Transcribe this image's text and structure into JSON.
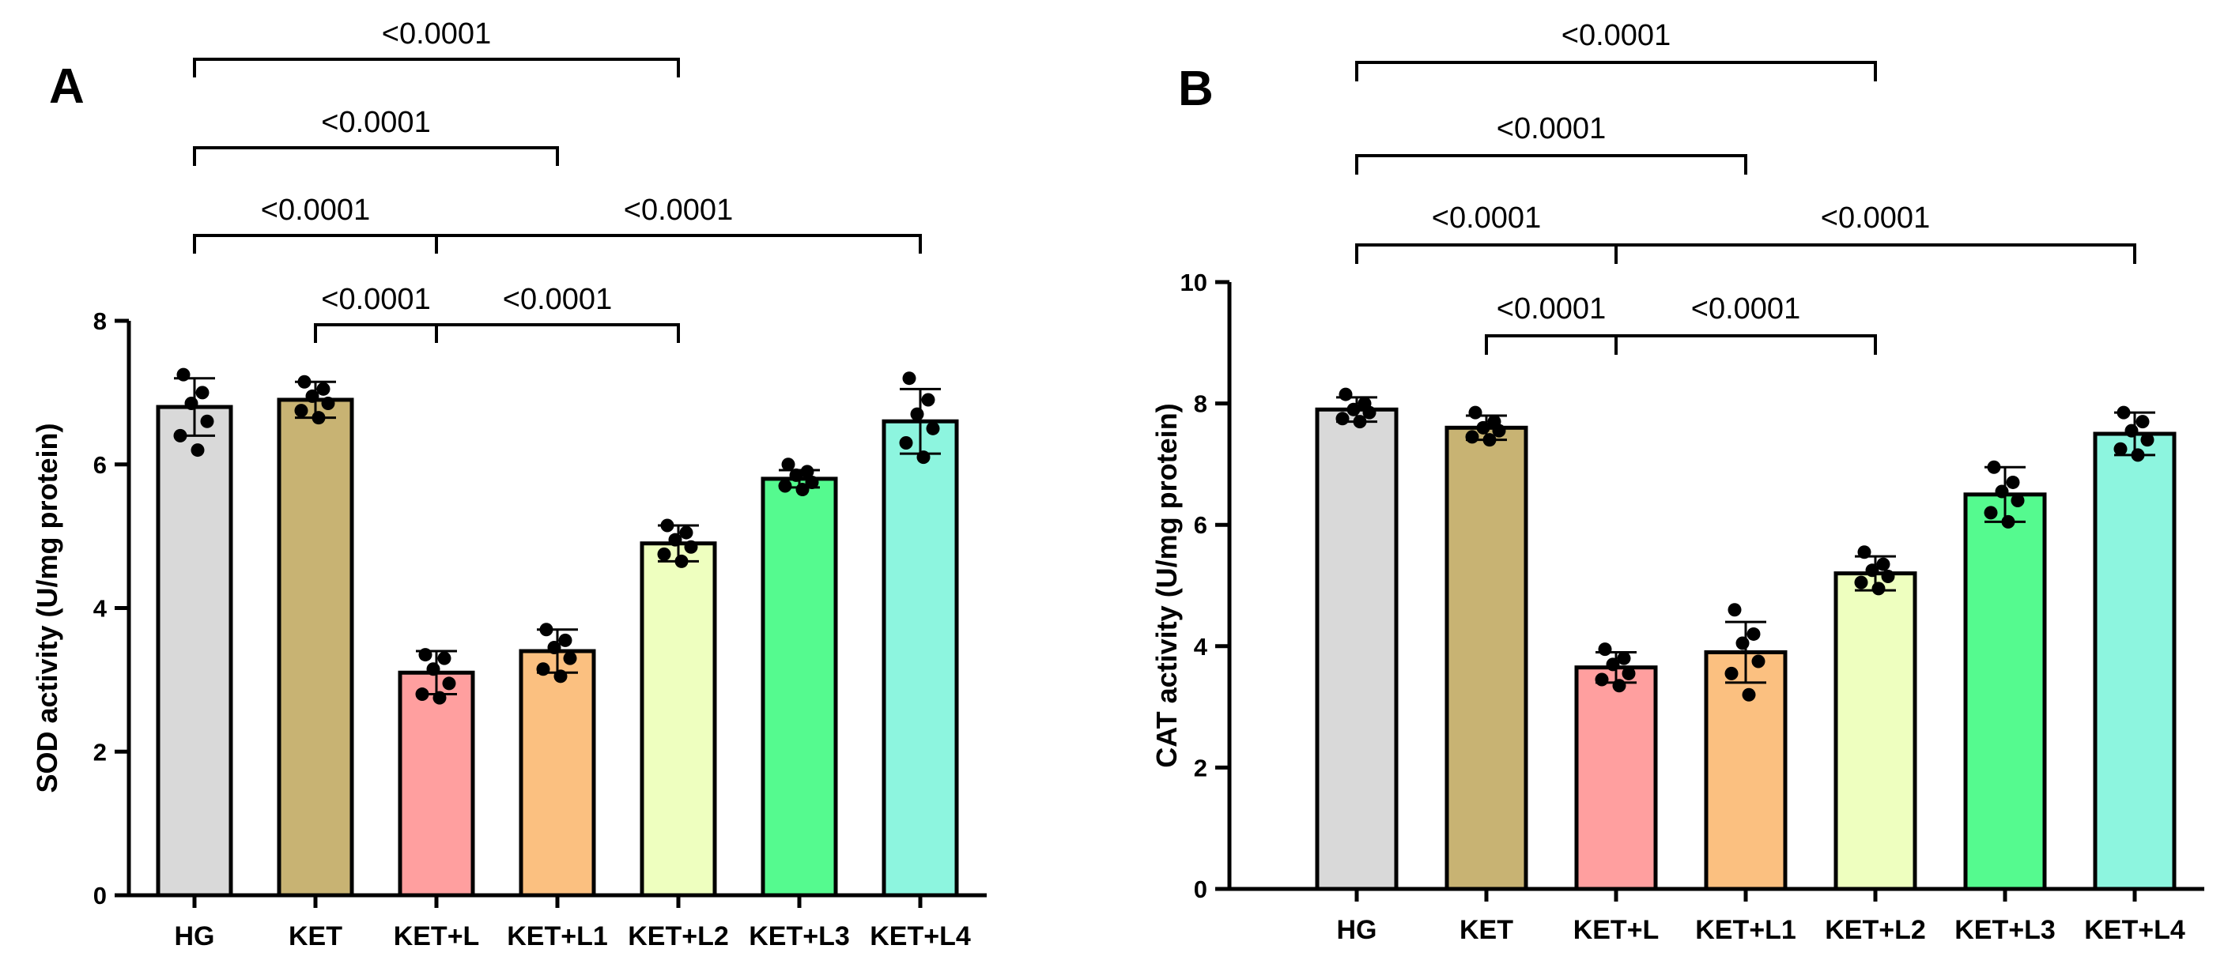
{
  "chart_data": [
    {
      "type": "bar",
      "panel": "A",
      "ylabel": "SOD  activity (U/mg protein)",
      "ylim": [
        0,
        8
      ],
      "yticks": [
        "0",
        "2",
        "4",
        "6",
        "8"
      ],
      "categories": [
        "HG",
        "KET",
        "KET+L",
        "KET+L1",
        "KET+L2",
        "KET+L3",
        "KET+L4"
      ],
      "colors": [
        "#d9d9d9",
        "#c8b373",
        "#ff9f9f",
        "#fbc080",
        "#eeffbf",
        "#55fa8f",
        "#8df5df"
      ],
      "values": [
        6.8,
        6.9,
        3.1,
        3.4,
        4.9,
        5.8,
        6.6
      ],
      "sd": [
        0.4,
        0.25,
        0.3,
        0.3,
        0.25,
        0.12,
        0.45
      ],
      "points": [
        [
          7.25,
          7.0,
          6.85,
          6.6,
          6.4,
          6.2
        ],
        [
          7.15,
          7.05,
          6.95,
          6.85,
          6.75,
          6.65
        ],
        [
          3.35,
          3.3,
          3.15,
          2.95,
          2.8,
          2.75
        ],
        [
          3.7,
          3.55,
          3.45,
          3.3,
          3.15,
          3.05
        ],
        [
          5.15,
          5.05,
          4.95,
          4.85,
          4.75,
          4.65
        ],
        [
          6.0,
          5.9,
          5.85,
          5.75,
          5.7,
          5.65
        ],
        [
          7.2,
          6.9,
          6.7,
          6.5,
          6.3,
          6.1
        ]
      ],
      "comparisons": [
        {
          "from": 0,
          "to": 4,
          "label": "<0.0001"
        },
        {
          "from": 0,
          "to": 3,
          "label": "<0.0001"
        },
        {
          "from": 0,
          "to": 2,
          "label": "<0.0001"
        },
        {
          "from": 2,
          "to": 6,
          "label": "<0.0001"
        },
        {
          "from": 1,
          "to": 2,
          "label": "<0.0001"
        },
        {
          "from": 2,
          "to": 4,
          "label": "<0.0001"
        }
      ]
    },
    {
      "type": "bar",
      "panel": "B",
      "ylabel": "CAT activity (U/mg protein)",
      "ylim": [
        0,
        10
      ],
      "yticks": [
        "0",
        "2",
        "4",
        "6",
        "8",
        "10"
      ],
      "categories": [
        "HG",
        "KET",
        "KET+L",
        "KET+L1",
        "KET+L2",
        "KET+L3",
        "KET+L4"
      ],
      "colors": [
        "#d9d9d9",
        "#c8b373",
        "#ff9f9f",
        "#fbc080",
        "#eeffbf",
        "#55fa8f",
        "#8df5df"
      ],
      "values": [
        7.9,
        7.6,
        3.65,
        3.9,
        5.2,
        6.5,
        7.5
      ],
      "sd": [
        0.2,
        0.2,
        0.25,
        0.5,
        0.28,
        0.45,
        0.35
      ],
      "points": [
        [
          8.15,
          8.0,
          7.9,
          7.85,
          7.75,
          7.7
        ],
        [
          7.85,
          7.7,
          7.6,
          7.55,
          7.45,
          7.4
        ],
        [
          3.95,
          3.8,
          3.7,
          3.55,
          3.45,
          3.35
        ],
        [
          4.6,
          4.2,
          4.05,
          3.75,
          3.55,
          3.2
        ],
        [
          5.55,
          5.35,
          5.25,
          5.15,
          5.05,
          4.95
        ],
        [
          6.95,
          6.7,
          6.55,
          6.4,
          6.2,
          6.05
        ],
        [
          7.85,
          7.7,
          7.55,
          7.4,
          7.25,
          7.15
        ]
      ],
      "comparisons": [
        {
          "from": 0,
          "to": 4,
          "label": "<0.0001"
        },
        {
          "from": 0,
          "to": 3,
          "label": "<0.0001"
        },
        {
          "from": 0,
          "to": 2,
          "label": "<0.0001"
        },
        {
          "from": 2,
          "to": 6,
          "label": "<0.0001"
        },
        {
          "from": 1,
          "to": 2,
          "label": "<0.0001"
        },
        {
          "from": 2,
          "to": 4,
          "label": "<0.0001"
        }
      ]
    }
  ]
}
